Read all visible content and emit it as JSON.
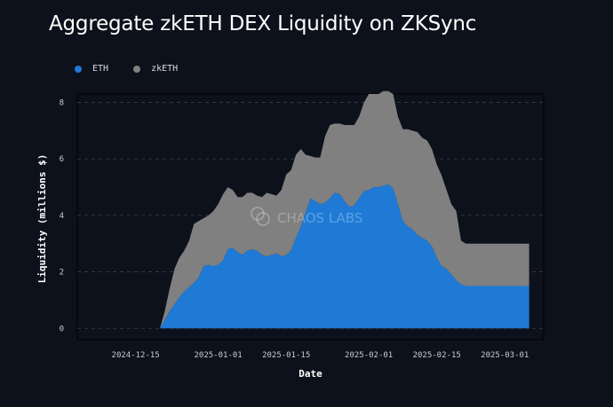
{
  "title": "Aggregate zkETH DEX Liquidity on ZKSync",
  "watermark": "CHAOS LABS",
  "colors": {
    "background": "#0d111b",
    "eth": "#1f7ad6",
    "zketh": "#808080",
    "grid": "#3a3f4a"
  },
  "legend": [
    {
      "label": "ETH",
      "color": "#1f7ad6"
    },
    {
      "label": "zkETH",
      "color": "#808080"
    }
  ],
  "chart_data": {
    "type": "area",
    "stacked": true,
    "title": "Aggregate zkETH DEX Liquidity on ZKSync",
    "xlabel": "Date",
    "ylabel": "Liquidity (millions $)",
    "ylim": [
      -0.4,
      8.3
    ],
    "yticks": [
      0,
      2,
      4,
      6,
      8
    ],
    "xlim": [
      "2024-12-03",
      "2025-03-09"
    ],
    "xticks": [
      "2024-12-15",
      "2025-01-01",
      "2025-01-15",
      "2025-02-01",
      "2025-02-15",
      "2025-03-01"
    ],
    "grid": true,
    "legend_position": "top-left",
    "x": [
      "2024-12-07",
      "2024-12-20",
      "2024-12-21",
      "2024-12-22",
      "2024-12-23",
      "2024-12-24",
      "2024-12-25",
      "2024-12-26",
      "2024-12-27",
      "2024-12-28",
      "2024-12-29",
      "2024-12-30",
      "2024-12-31",
      "2025-01-01",
      "2025-01-02",
      "2025-01-03",
      "2025-01-04",
      "2025-01-05",
      "2025-01-06",
      "2025-01-07",
      "2025-01-08",
      "2025-01-09",
      "2025-01-10",
      "2025-01-11",
      "2025-01-12",
      "2025-01-13",
      "2025-01-14",
      "2025-01-15",
      "2025-01-16",
      "2025-01-17",
      "2025-01-18",
      "2025-01-19",
      "2025-01-20",
      "2025-01-21",
      "2025-01-22",
      "2025-01-23",
      "2025-01-24",
      "2025-01-25",
      "2025-01-26",
      "2025-01-27",
      "2025-01-28",
      "2025-01-29",
      "2025-01-30",
      "2025-01-31",
      "2025-02-01",
      "2025-02-02",
      "2025-02-03",
      "2025-02-04",
      "2025-02-05",
      "2025-02-06",
      "2025-02-07",
      "2025-02-08",
      "2025-02-09",
      "2025-02-10",
      "2025-02-11",
      "2025-02-12",
      "2025-02-13",
      "2025-02-14",
      "2025-02-15",
      "2025-02-16",
      "2025-02-17",
      "2025-02-18",
      "2025-02-19",
      "2025-02-20",
      "2025-02-21",
      "2025-02-22",
      "2025-02-23",
      "2025-02-24",
      "2025-02-25",
      "2025-02-26",
      "2025-02-27",
      "2025-02-28",
      "2025-03-01",
      "2025-03-02",
      "2025-03-03",
      "2025-03-04",
      "2025-03-05",
      "2025-03-06"
    ],
    "series": [
      {
        "name": "ETH",
        "values": [
          0,
          0,
          0.3,
          0.6,
          0.85,
          1.1,
          1.3,
          1.45,
          1.6,
          1.8,
          2.2,
          2.25,
          2.2,
          2.25,
          2.4,
          2.8,
          2.85,
          2.7,
          2.6,
          2.75,
          2.8,
          2.75,
          2.6,
          2.55,
          2.6,
          2.65,
          2.55,
          2.6,
          2.75,
          3.2,
          3.6,
          4.1,
          4.6,
          4.5,
          4.4,
          4.45,
          4.6,
          4.8,
          4.75,
          4.5,
          4.3,
          4.35,
          4.6,
          4.85,
          4.9,
          5.0,
          5.0,
          5.05,
          5.1,
          4.95,
          4.4,
          3.8,
          3.6,
          3.5,
          3.3,
          3.2,
          3.1,
          2.9,
          2.5,
          2.2,
          2.1,
          1.9,
          1.7,
          1.55,
          1.5,
          1.5,
          1.5,
          1.5,
          1.5,
          1.5,
          1.5,
          1.5,
          1.5,
          1.5,
          1.5,
          1.5,
          1.5,
          1.5
        ]
      },
      {
        "name": "zkETH",
        "values": [
          0,
          0,
          0.3,
          0.8,
          1.25,
          1.4,
          1.45,
          1.65,
          2.1,
          2.0,
          1.7,
          1.75,
          1.95,
          2.15,
          2.35,
          2.2,
          2.05,
          1.95,
          2.05,
          2.05,
          2.0,
          1.95,
          2.05,
          2.25,
          2.15,
          2.05,
          2.35,
          2.85,
          2.85,
          2.95,
          2.75,
          2.05,
          1.5,
          1.55,
          1.65,
          2.35,
          2.6,
          2.45,
          2.5,
          2.7,
          2.9,
          2.85,
          2.9,
          3.15,
          3.4,
          3.3,
          3.3,
          3.35,
          3.3,
          3.35,
          3.1,
          3.25,
          3.45,
          3.5,
          3.65,
          3.55,
          3.55,
          3.45,
          3.3,
          3.2,
          2.8,
          2.5,
          2.45,
          1.55,
          1.5,
          1.5,
          1.5,
          1.5,
          1.5,
          1.5,
          1.5,
          1.5,
          1.5,
          1.5,
          1.5,
          1.5,
          1.5,
          1.5
        ]
      }
    ]
  }
}
